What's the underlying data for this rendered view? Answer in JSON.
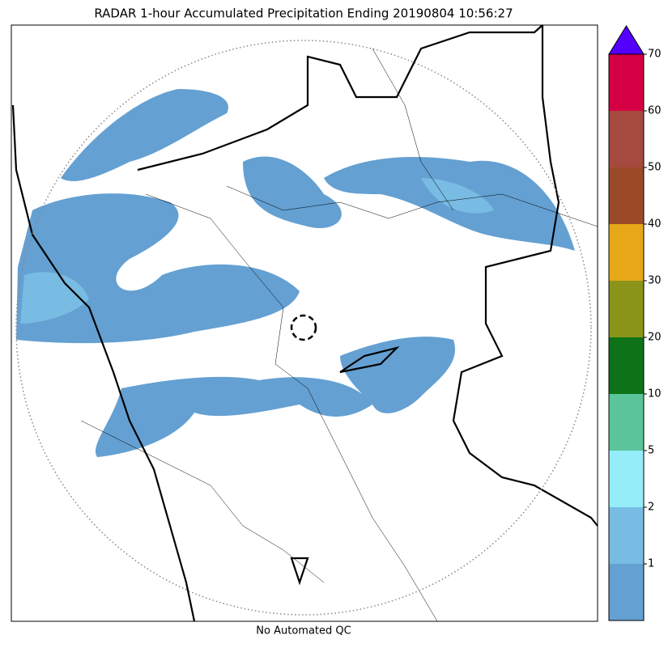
{
  "title": "RADAR 1-hour Accumulated Precipitation Ending 20190804 10:56:27",
  "footer": "No Automated QC",
  "colorbar": {
    "ticks": [
      1,
      2,
      5,
      10,
      20,
      30,
      40,
      50,
      60,
      70
    ],
    "colors": [
      "#64a0d2",
      "#78bbe3",
      "#96edfa",
      "#5cc49a",
      "#0e7318",
      "#8a9418",
      "#e6a817",
      "#9b4a27",
      "#a44a3e",
      "#d50044"
    ],
    "extend_color": "#5500ff"
  }
}
